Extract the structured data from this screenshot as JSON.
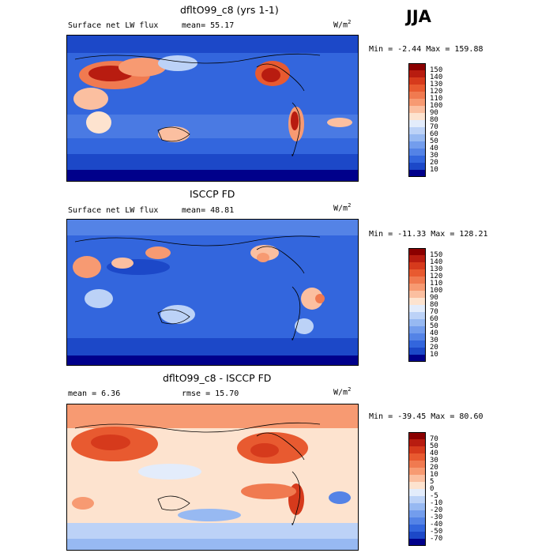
{
  "season": "JJA",
  "chart_data": [
    {
      "type": "heatmap",
      "title": "dfltO99_c8 (yrs 1-1)",
      "field": "Surface net LW flux",
      "stat": "mean=  55.17",
      "units_base": "W/m",
      "units_exp": "2",
      "minmax": "Min =  -2.44 Max = 159.88",
      "colorbar_levels": [
        "150",
        "140",
        "130",
        "120",
        "110",
        "100",
        "90",
        "80",
        "70",
        "60",
        "50",
        "40",
        "30",
        "20",
        "10"
      ],
      "colorbar_colors": [
        "#8b0000",
        "#b81c10",
        "#d63a1c",
        "#e85a30",
        "#f07a50",
        "#f79a72",
        "#fbbfa0",
        "#fde3cf",
        "#e3ecfb",
        "#bcd2f7",
        "#97b9f2",
        "#739ded",
        "#5483e6",
        "#3366dd",
        "#1c48c8",
        "#00008b"
      ]
    },
    {
      "type": "heatmap",
      "title": "ISCCP FD",
      "field": "Surface net LW flux",
      "stat": "mean=  48.81",
      "units_base": "W/m",
      "units_exp": "2",
      "minmax": "Min = -11.33 Max = 128.21",
      "colorbar_levels": [
        "150",
        "140",
        "130",
        "120",
        "110",
        "100",
        "90",
        "80",
        "70",
        "60",
        "50",
        "40",
        "30",
        "20",
        "10"
      ],
      "colorbar_colors": [
        "#8b0000",
        "#b81c10",
        "#d63a1c",
        "#e85a30",
        "#f07a50",
        "#f79a72",
        "#fbbfa0",
        "#fde3cf",
        "#e3ecfb",
        "#bcd2f7",
        "#97b9f2",
        "#739ded",
        "#5483e6",
        "#3366dd",
        "#1c48c8",
        "#00008b"
      ]
    },
    {
      "type": "heatmap",
      "title": "dfltO99_c8 - ISCCP FD",
      "stat_mean": "mean =   6.36",
      "stat_rmse": "rmse =  15.70",
      "units_base": "W/m",
      "units_exp": "2",
      "minmax": "Min = -39.45 Max =  80.60",
      "colorbar_levels": [
        "70",
        "50",
        "40",
        "30",
        "20",
        "10",
        "5",
        "0",
        "-5",
        "-10",
        "-20",
        "-30",
        "-40",
        "-50",
        "-70"
      ],
      "colorbar_colors": [
        "#8b0000",
        "#b81c10",
        "#d63a1c",
        "#e85a30",
        "#f07a50",
        "#f79a72",
        "#fbbfa0",
        "#fde3cf",
        "#e3ecfb",
        "#bcd2f7",
        "#97b9f2",
        "#739ded",
        "#5483e6",
        "#3366dd",
        "#1c48c8",
        "#00008b"
      ]
    }
  ]
}
